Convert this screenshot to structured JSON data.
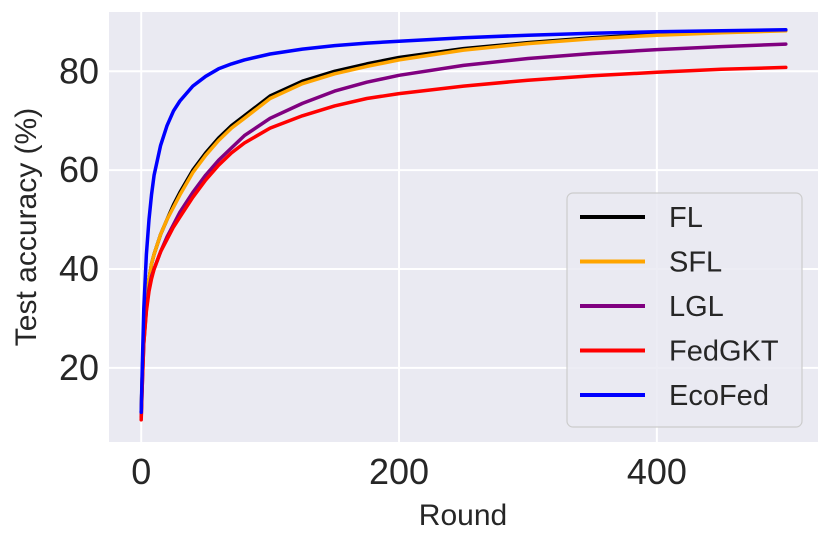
{
  "chart_data": {
    "type": "line",
    "title": "",
    "xlabel": "Round",
    "ylabel": "Test accuracy (%)",
    "xlim": [
      -25,
      525
    ],
    "ylim": [
      5,
      92
    ],
    "xticks": [
      0,
      200,
      400
    ],
    "yticks": [
      20,
      40,
      60,
      80
    ],
    "grid": true,
    "legend_position": "lower-right",
    "x": [
      0,
      1,
      2,
      4,
      6,
      8,
      10,
      15,
      20,
      25,
      30,
      40,
      50,
      60,
      70,
      80,
      100,
      125,
      150,
      175,
      200,
      250,
      300,
      350,
      400,
      450,
      500
    ],
    "series": [
      {
        "name": "FL",
        "color": "#000000",
        "values": [
          11,
          20,
          27,
          34,
          38,
          41,
          43,
          47,
          50,
          53,
          55.5,
          60,
          63.5,
          66.5,
          69,
          71,
          75,
          78,
          80,
          81.5,
          82.8,
          84.6,
          85.8,
          86.8,
          87.5,
          88,
          88.3
        ]
      },
      {
        "name": "SFL",
        "color": "#FFA500",
        "values": [
          11,
          20,
          27,
          34,
          38,
          41,
          43,
          47,
          50,
          52.5,
          55,
          59.5,
          63,
          66,
          68.5,
          70.5,
          74.5,
          77.5,
          79.5,
          81,
          82.3,
          84.3,
          85.6,
          86.6,
          87.3,
          87.8,
          88.2
        ]
      },
      {
        "name": "LGL",
        "color": "#800080",
        "values": [
          10,
          18,
          25,
          32,
          36,
          38.5,
          40,
          43.5,
          46.5,
          49,
          51.5,
          55.5,
          59,
          62,
          64.5,
          67,
          70.5,
          73.5,
          76,
          77.8,
          79.2,
          81.2,
          82.6,
          83.6,
          84.4,
          85,
          85.5
        ]
      },
      {
        "name": "FedGKT",
        "color": "#FF0000",
        "values": [
          9.5,
          18,
          25,
          31.5,
          35.5,
          38,
          40,
          43.5,
          46,
          48.5,
          50.5,
          54.5,
          58,
          61,
          63.5,
          65.5,
          68.5,
          71,
          73,
          74.5,
          75.5,
          77,
          78.2,
          79.1,
          79.8,
          80.4,
          80.8
        ]
      },
      {
        "name": "EcoFed",
        "color": "#0000FF",
        "values": [
          11,
          22,
          32,
          43,
          50,
          55,
          59,
          65,
          69,
          72,
          74,
          77,
          79,
          80.5,
          81.5,
          82.3,
          83.5,
          84.5,
          85.2,
          85.7,
          86.1,
          86.8,
          87.3,
          87.7,
          88,
          88.2,
          88.4
        ]
      }
    ]
  }
}
